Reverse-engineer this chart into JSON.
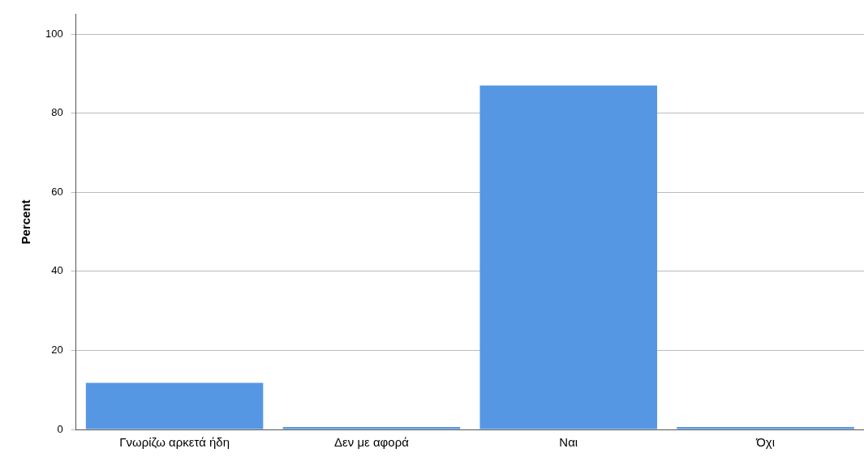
{
  "chart_data": {
    "type": "bar",
    "ylabel": "Percent",
    "categories": [
      "Γνωρίζω αρκετά ήδη",
      "Δεν με αφορά",
      "Ναι",
      "Όχι"
    ],
    "values": [
      11.8,
      0.6,
      87,
      0.6
    ],
    "color": "#5597e3",
    "ylim": [
      0,
      105
    ],
    "yticks": [
      0,
      20,
      40,
      60,
      80,
      100
    ],
    "grid": "y",
    "legend": false
  }
}
